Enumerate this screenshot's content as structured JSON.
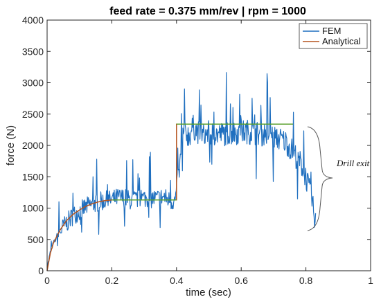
{
  "chart_data": {
    "type": "line",
    "title": "feed rate = 0.375 mm/rev | rpm = 1000",
    "xlabel": "time (sec)",
    "ylabel": "force (N)",
    "xlim": [
      0,
      1
    ],
    "ylim": [
      0,
      4000
    ],
    "xticks": [
      "0",
      "0.2",
      "0.4",
      "0.6",
      "0.8",
      "1"
    ],
    "yticks": [
      "0",
      "500",
      "1000",
      "1500",
      "2000",
      "2500",
      "3000",
      "3500",
      "4000"
    ],
    "grid": false,
    "legend_position": "top-right",
    "annotation": "Drill exit",
    "colors": {
      "fem": "#1f6fbf",
      "analytical": "#b5541f",
      "analytical_flat": "#5aa02c"
    },
    "series": [
      {
        "name": "FEM",
        "x": [
          0.0,
          0.01,
          0.02,
          0.03,
          0.04,
          0.05,
          0.06,
          0.08,
          0.1,
          0.12,
          0.14,
          0.16,
          0.18,
          0.2,
          0.22,
          0.24,
          0.26,
          0.28,
          0.3,
          0.32,
          0.34,
          0.36,
          0.38,
          0.395,
          0.405,
          0.41,
          0.42,
          0.43,
          0.44,
          0.45,
          0.46,
          0.48,
          0.5,
          0.52,
          0.54,
          0.56,
          0.58,
          0.6,
          0.62,
          0.64,
          0.66,
          0.68,
          0.7,
          0.72,
          0.74,
          0.76,
          0.78,
          0.79,
          0.8,
          0.81,
          0.82,
          0.83
        ],
        "y": [
          50,
          300,
          450,
          520,
          620,
          700,
          760,
          880,
          950,
          1020,
          1060,
          1100,
          1120,
          1130,
          1170,
          1160,
          1120,
          1140,
          1160,
          1150,
          1150,
          1180,
          1120,
          1100,
          1450,
          1650,
          2150,
          2200,
          2150,
          2300,
          2250,
          2150,
          2200,
          2180,
          2180,
          2200,
          2200,
          2220,
          2220,
          2200,
          2180,
          2200,
          2150,
          2100,
          2050,
          1900,
          1750,
          1650,
          1500,
          1300,
          1050,
          800
        ]
      },
      {
        "name": "Analytical",
        "x": [
          0.0,
          0.01,
          0.02,
          0.04,
          0.06,
          0.08,
          0.1,
          0.12,
          0.14,
          0.16,
          0.18,
          0.2,
          0.4,
          0.4,
          0.76
        ],
        "y": [
          0,
          280,
          450,
          650,
          800,
          900,
          970,
          1030,
          1070,
          1100,
          1120,
          1130,
          1130,
          2340,
          2340
        ]
      }
    ]
  }
}
